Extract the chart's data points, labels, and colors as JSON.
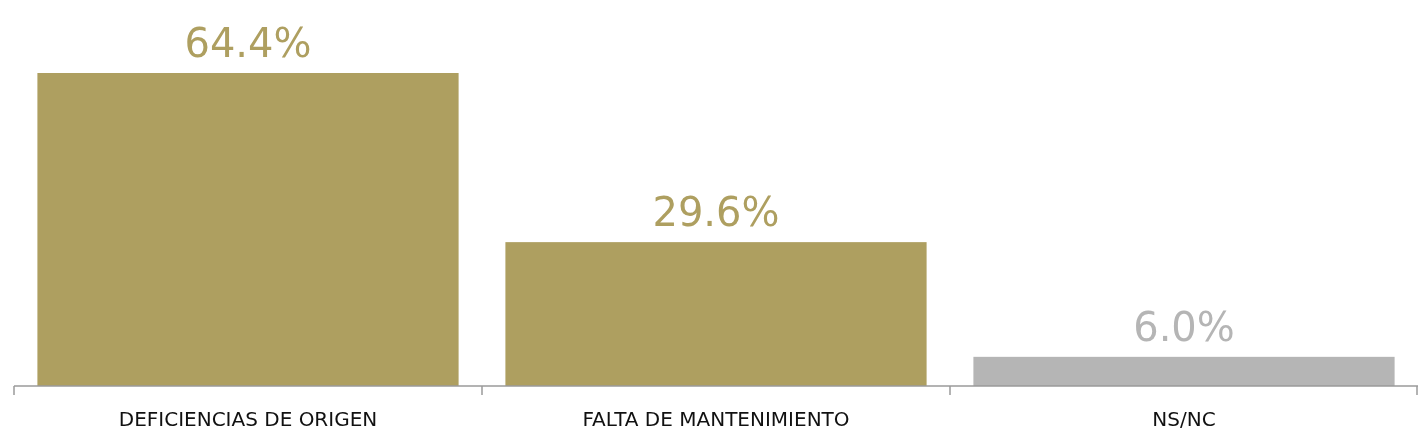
{
  "chart_data": {
    "type": "bar",
    "categories": [
      "DEFICIENCIAS DE ORIGEN",
      "FALTA DE MANTENIMIENTO",
      "NS/NC"
    ],
    "values": [
      64.4,
      29.6,
      6.0
    ],
    "colors": [
      "#ae9f60",
      "#ae9f60",
      "#b5b5b5"
    ],
    "value_labels": [
      "64.4%",
      "29.6%",
      "6.0%"
    ]
  }
}
